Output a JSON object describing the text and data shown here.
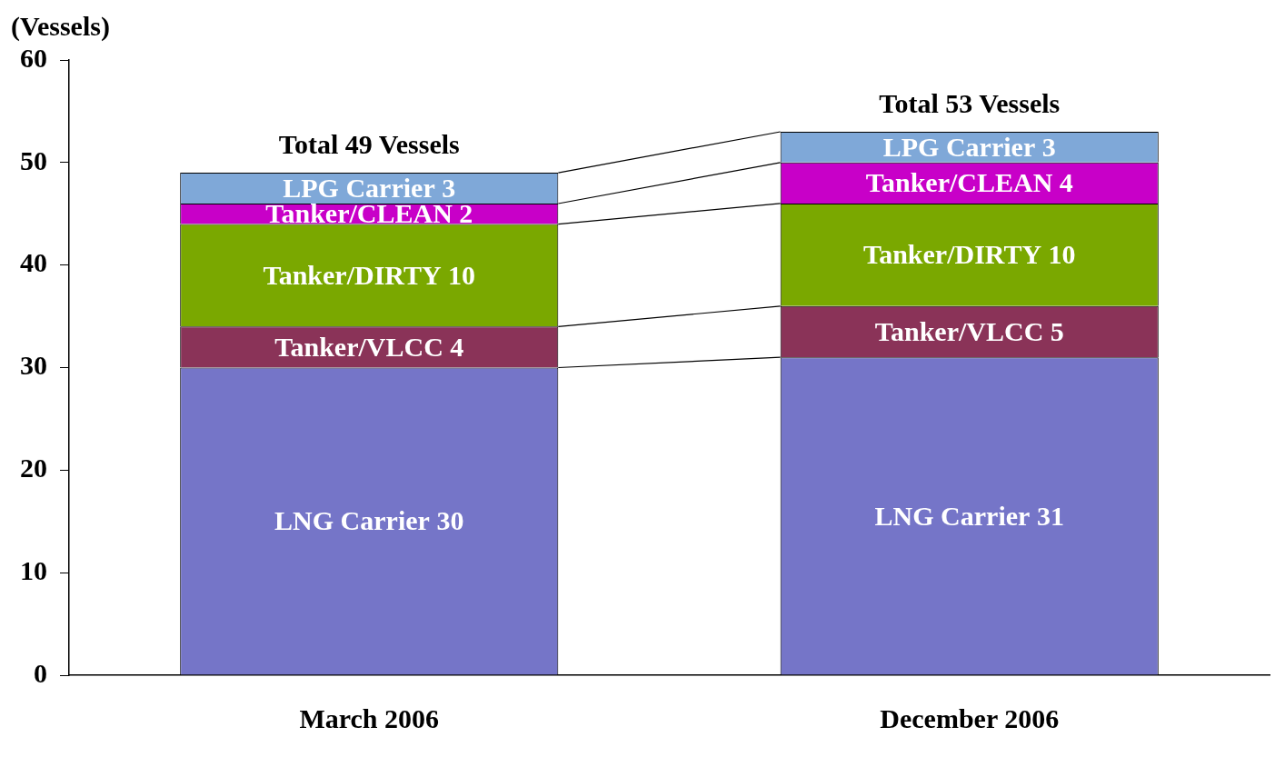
{
  "chart_data": {
    "type": "bar",
    "stacked": true,
    "ylabel": "(Vessels)",
    "categories": [
      "March 2006",
      "December 2006"
    ],
    "series": [
      {
        "name": "LNG Carrier",
        "color": "#7575c8",
        "values": [
          30,
          31
        ]
      },
      {
        "name": "Tanker/VLCC",
        "color": "#8a3358",
        "values": [
          4,
          5
        ]
      },
      {
        "name": "Tanker/DIRTY",
        "color": "#7aa800",
        "values": [
          10,
          10
        ]
      },
      {
        "name": "Tanker/CLEAN",
        "color": "#c800c8",
        "values": [
          2,
          4
        ]
      },
      {
        "name": "LPG Carrier",
        "color": "#7fa8d8",
        "values": [
          3,
          3
        ]
      }
    ],
    "ylim": [
      0,
      60
    ],
    "yticks": [
      0,
      10,
      20,
      30,
      40,
      50,
      60
    ],
    "grid": false,
    "legend": false,
    "data_labels": true,
    "totals": [
      "Total 49 Vessels",
      "Total 53 Vessels"
    ]
  }
}
